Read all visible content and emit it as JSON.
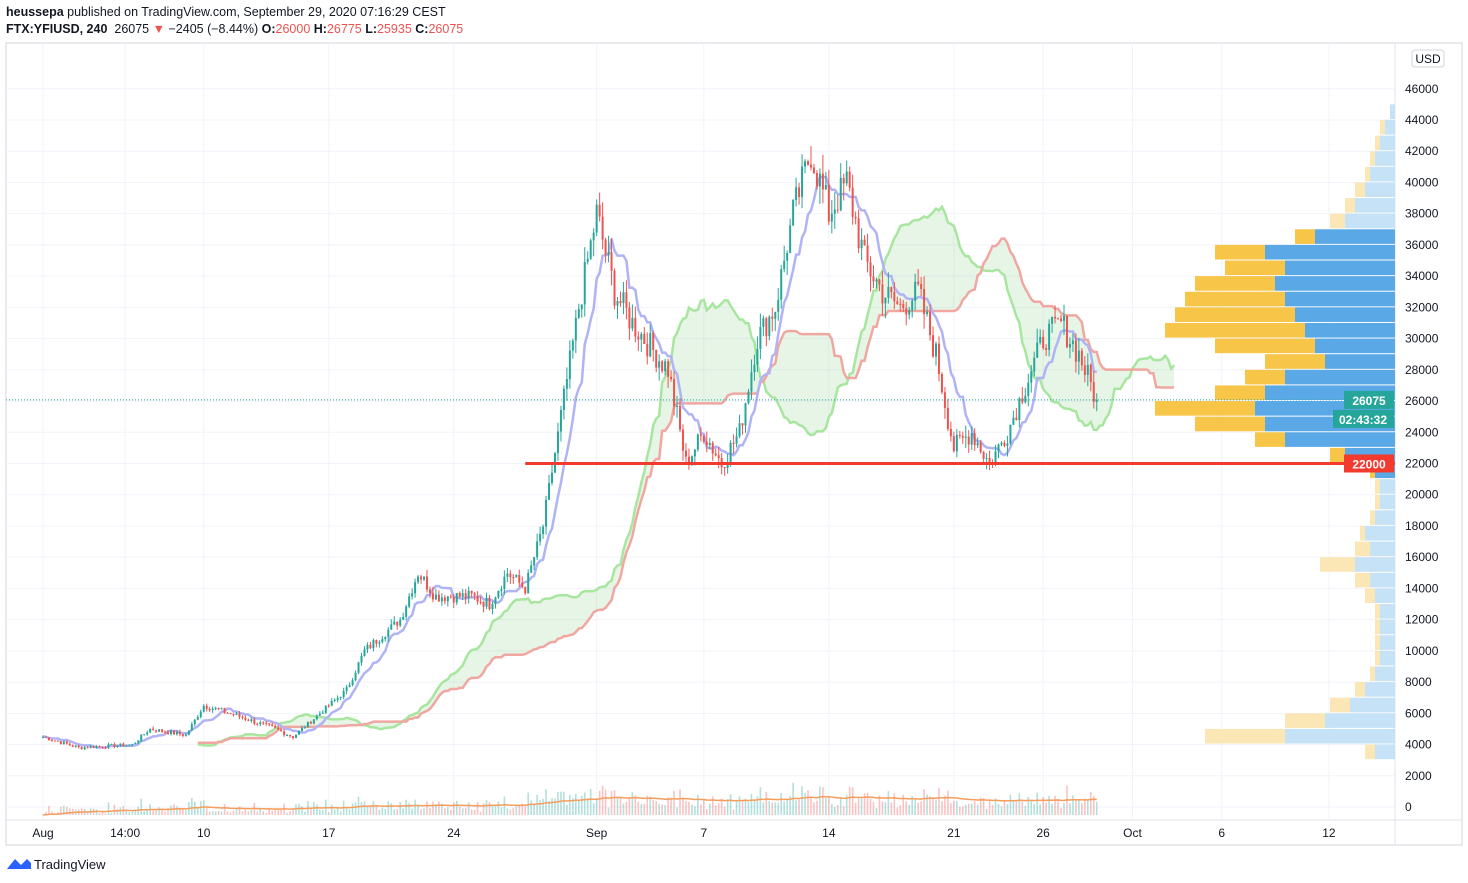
{
  "header": {
    "author": "heussepa",
    "published": "published on TradingView.com, September 29, 2020 07:16:29 CEST",
    "symbol": "FTX:YFIUSD, 240",
    "last": "26075",
    "change": "−2405 (−8.44%)",
    "o_label": "O:",
    "o": "26000",
    "h_label": "H:",
    "h": "26775",
    "l_label": "L:",
    "l": "25935",
    "c_label": "C:",
    "c": "26075"
  },
  "currency": "USD",
  "footer": {
    "brand": "TradingView"
  },
  "colors": {
    "up": "#26a69a",
    "down": "#ef5350",
    "level": "#f23a2f",
    "vp_up": "#5aa9e6",
    "vp_down": "#f7c548",
    "tenkan": "#b0b3f5",
    "kijun": "#f0a7a0",
    "span": "#a8e6a0"
  },
  "chart_data": {
    "type": "candlestick",
    "timeframe": "240",
    "ylim": [
      0,
      48000
    ],
    "y_ticks": [
      0,
      2000,
      4000,
      6000,
      8000,
      10000,
      12000,
      14000,
      16000,
      18000,
      20000,
      22000,
      24000,
      26000,
      28000,
      30000,
      32000,
      34000,
      36000,
      38000,
      40000,
      42000,
      44000,
      46000
    ],
    "x_ticks": [
      {
        "day": 1,
        "label": "Aug"
      },
      {
        "day": 5.6,
        "label": "14:00"
      },
      {
        "day": 10,
        "label": "10"
      },
      {
        "day": 17,
        "label": "17"
      },
      {
        "day": 24,
        "label": "24"
      },
      {
        "day": 32,
        "label": "Sep"
      },
      {
        "day": 38,
        "label": "7"
      },
      {
        "day": 45,
        "label": "14"
      },
      {
        "day": 52,
        "label": "21"
      },
      {
        "day": 57,
        "label": "26"
      },
      {
        "day": 62,
        "label": "Oct"
      },
      {
        "day": 67,
        "label": "6"
      },
      {
        "day": 73,
        "label": "12"
      }
    ],
    "price_path": [
      [
        1,
        4500
      ],
      [
        3,
        3800
      ],
      [
        6,
        4000
      ],
      [
        7,
        5000
      ],
      [
        9,
        4600
      ],
      [
        10,
        6500
      ],
      [
        12,
        5800
      ],
      [
        14,
        5000
      ],
      [
        15,
        4500
      ],
      [
        16,
        5500
      ],
      [
        18,
        7500
      ],
      [
        19,
        10000
      ],
      [
        21,
        12000
      ],
      [
        22,
        15000
      ],
      [
        23,
        13500
      ],
      [
        25,
        13500
      ],
      [
        26,
        13000
      ],
      [
        27,
        15000
      ],
      [
        28,
        14000
      ],
      [
        29,
        18000
      ],
      [
        30,
        25000
      ],
      [
        31,
        32000
      ],
      [
        32,
        38000
      ],
      [
        33,
        33000
      ],
      [
        34,
        31000
      ],
      [
        36,
        28000
      ],
      [
        37,
        22000
      ],
      [
        38,
        24000
      ],
      [
        39,
        22000
      ],
      [
        40,
        24000
      ],
      [
        41,
        30000
      ],
      [
        42,
        32000
      ],
      [
        43,
        38000
      ],
      [
        44,
        42000
      ],
      [
        45,
        38000
      ],
      [
        46,
        40000
      ],
      [
        47,
        35000
      ],
      [
        48,
        33000
      ],
      [
        49,
        32000
      ],
      [
        50,
        33000
      ],
      [
        51,
        29000
      ],
      [
        52,
        23000
      ],
      [
        53,
        24000
      ],
      [
        54,
        22000
      ],
      [
        55,
        24000
      ],
      [
        56,
        27000
      ],
      [
        57,
        30000
      ],
      [
        58,
        31000
      ],
      [
        59,
        29000
      ],
      [
        60,
        26075
      ]
    ],
    "last_price": 26075,
    "countdown": "02:43:32",
    "horizontal_level": {
      "price": 22000,
      "label": "22000",
      "from_day": 28
    },
    "volume_profile": {
      "step": 1000,
      "start": 3000,
      "up": [
        4,
        22,
        14,
        9,
        6,
        4,
        3,
        3,
        3,
        3,
        4,
        5,
        8,
        5,
        6,
        4,
        3,
        3,
        4,
        10,
        22,
        26,
        28,
        26,
        22,
        14,
        16,
        18,
        20,
        22,
        24,
        22,
        26,
        16,
        10,
        8,
        6,
        5,
        4,
        3,
        2,
        1
      ],
      "down": [
        2,
        16,
        8,
        4,
        2,
        1,
        1,
        1,
        1,
        1,
        2,
        3,
        7,
        3,
        1,
        1,
        1,
        1,
        1,
        3,
        6,
        14,
        20,
        10,
        8,
        12,
        20,
        28,
        24,
        20,
        16,
        12,
        10,
        4,
        3,
        2,
        2,
        1,
        1,
        1,
        1,
        0
      ]
    }
  }
}
